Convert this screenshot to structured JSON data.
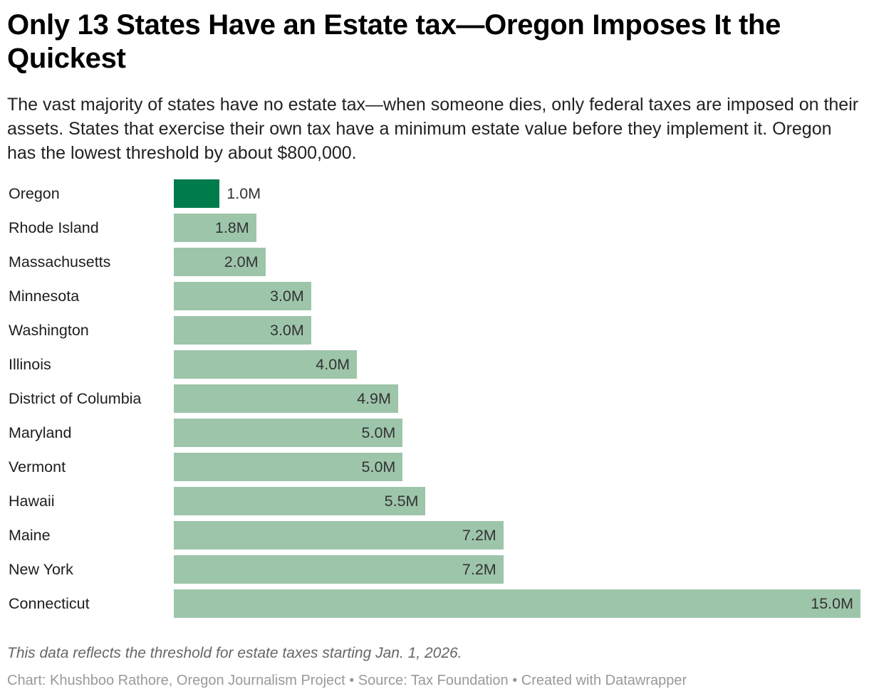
{
  "title": "Only 13 States Have an Estate tax—Oregon Imposes It the Quickest",
  "subtitle": "The vast majority of states have no estate tax—when someone dies, only federal taxes are imposed on their assets. States that exercise their own tax have a minimum estate value before they implement it. Oregon has the lowest threshold by about $800,000.",
  "note": "This data reflects the threshold for estate taxes starting Jan. 1, 2026.",
  "byline": "Chart: Khushboo Rathore, Oregon Journalism Project • Source: Tax Foundation • Created with Datawrapper",
  "colors": {
    "highlight": "#007b4c",
    "default": "#9dc5aa"
  },
  "chart_data": {
    "type": "bar",
    "orientation": "horizontal",
    "unit": "million USD",
    "xlim": [
      0,
      15
    ],
    "highlight": "Oregon",
    "categories": [
      "Oregon",
      "Rhode Island",
      "Massachusetts",
      "Minnesota",
      "Washington",
      "Illinois",
      "District of Columbia",
      "Maryland",
      "Vermont",
      "Hawaii",
      "Maine",
      "New York",
      "Connecticut"
    ],
    "values": [
      1.0,
      1.8,
      2.0,
      3.0,
      3.0,
      4.0,
      4.9,
      5.0,
      5.0,
      5.5,
      7.2,
      7.2,
      15.0
    ],
    "labels": [
      "1.0M",
      "1.8M",
      "2.0M",
      "3.0M",
      "3.0M",
      "4.0M",
      "4.9M",
      "5.0M",
      "5.0M",
      "5.5M",
      "7.2M",
      "7.2M",
      "15.0M"
    ]
  }
}
